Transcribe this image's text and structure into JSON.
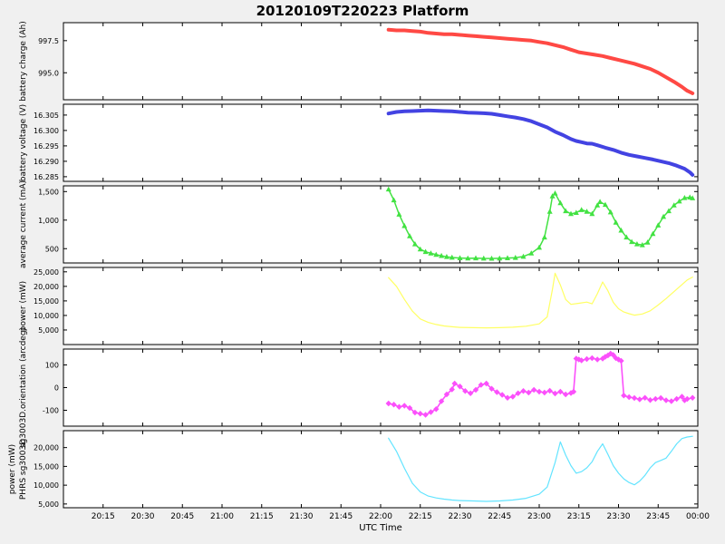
{
  "title": "20120109T220223 Platform",
  "x_axis": {
    "label": "UTC Time",
    "ticks": [
      {
        "m": 15,
        "label": "20:15"
      },
      {
        "m": 30,
        "label": "20:30"
      },
      {
        "m": 45,
        "label": "20:45"
      },
      {
        "m": 60,
        "label": "21:00"
      },
      {
        "m": 75,
        "label": "21:15"
      },
      {
        "m": 90,
        "label": "21:30"
      },
      {
        "m": 105,
        "label": "21:45"
      },
      {
        "m": 120,
        "label": "22:00"
      },
      {
        "m": 135,
        "label": "22:15"
      },
      {
        "m": 150,
        "label": "22:30"
      },
      {
        "m": 165,
        "label": "22:45"
      },
      {
        "m": 180,
        "label": "23:00"
      },
      {
        "m": 195,
        "label": "23:15"
      },
      {
        "m": 210,
        "label": "23:30"
      },
      {
        "m": 225,
        "label": "23:45"
      },
      {
        "m": 240,
        "label": "00:00"
      }
    ]
  },
  "x_domain": [
    0,
    240
  ],
  "chart_data": [
    {
      "name": "battery-charge",
      "type": "line",
      "ylabel_lines": [
        "battery charge (Ah)"
      ],
      "color": "#ff4944",
      "marker": "none",
      "line_width": 4,
      "ylim": [
        992.9,
        998.9
      ],
      "yticks": [
        {
          "v": 995.0,
          "label": "995.0"
        },
        {
          "v": 997.5,
          "label": "997.5"
        }
      ],
      "x": [
        123,
        126,
        129,
        132,
        135,
        138,
        141,
        144,
        147,
        150,
        153,
        156,
        159,
        162,
        165,
        168,
        171,
        174,
        177,
        180,
        183,
        186,
        189,
        192,
        195,
        198,
        201,
        204,
        207,
        210,
        213,
        216,
        219,
        222,
        225,
        228,
        231,
        234,
        236,
        238
      ],
      "y": [
        998.35,
        998.3,
        998.3,
        998.25,
        998.2,
        998.1,
        998.05,
        998.0,
        998.0,
        997.95,
        997.9,
        997.85,
        997.8,
        997.75,
        997.7,
        997.65,
        997.6,
        997.55,
        997.5,
        997.4,
        997.3,
        997.15,
        997.0,
        996.8,
        996.6,
        996.5,
        996.4,
        996.3,
        996.15,
        996.0,
        995.85,
        995.7,
        995.5,
        995.3,
        995.0,
        994.65,
        994.3,
        993.9,
        993.6,
        993.4
      ]
    },
    {
      "name": "battery-voltage",
      "type": "line",
      "ylabel_lines": [
        "battery voltage (V)"
      ],
      "color": "#4343e2",
      "marker": "none",
      "line_width": 4,
      "ylim": [
        16.2835,
        16.3085
      ],
      "yticks": [
        {
          "v": 16.285,
          "label": "16.285"
        },
        {
          "v": 16.29,
          "label": "16.290"
        },
        {
          "v": 16.295,
          "label": "16.295"
        },
        {
          "v": 16.3,
          "label": "16.300"
        },
        {
          "v": 16.305,
          "label": "16.305"
        }
      ],
      "x": [
        123,
        126,
        129,
        132,
        135,
        138,
        141,
        144,
        147,
        150,
        153,
        156,
        159,
        162,
        165,
        168,
        171,
        174,
        177,
        180,
        183,
        186,
        189,
        192,
        194,
        196,
        198,
        200,
        202,
        205,
        208,
        211,
        214,
        217,
        220,
        223,
        226,
        229,
        232,
        235,
        237,
        238
      ],
      "y": [
        16.3055,
        16.306,
        16.3062,
        16.3063,
        16.3064,
        16.3065,
        16.3064,
        16.3063,
        16.3062,
        16.306,
        16.3058,
        16.3057,
        16.3056,
        16.3054,
        16.305,
        16.3046,
        16.3042,
        16.3037,
        16.303,
        16.302,
        16.301,
        16.2996,
        16.2985,
        16.2972,
        16.2966,
        16.2962,
        16.2958,
        16.2957,
        16.2952,
        16.2944,
        16.2937,
        16.2928,
        16.2921,
        16.2916,
        16.2911,
        16.2906,
        16.29,
        16.2894,
        16.2886,
        16.2876,
        16.2864,
        16.2856
      ]
    },
    {
      "name": "average-current",
      "type": "line",
      "ylabel_lines": [
        "average current (mA)"
      ],
      "color": "#42e242",
      "marker": "triangle",
      "line_width": 1.5,
      "ylim": [
        250,
        1600
      ],
      "yticks": [
        {
          "v": 500,
          "label": "500"
        },
        {
          "v": 1000,
          "label": "1,000"
        },
        {
          "v": 1500,
          "label": "1,500"
        }
      ],
      "x": [
        123,
        125,
        127,
        129,
        131,
        133,
        135,
        137,
        139,
        141,
        143,
        145,
        147,
        150,
        153,
        156,
        159,
        162,
        165,
        168,
        171,
        174,
        177,
        180,
        182,
        184,
        185,
        186,
        188,
        190,
        192,
        194,
        196,
        198,
        200,
        202,
        203,
        205,
        207,
        209,
        211,
        213,
        215,
        217,
        219,
        221,
        223,
        225,
        227,
        229,
        231,
        233,
        235,
        237,
        238
      ],
      "y": [
        1540,
        1350,
        1100,
        900,
        720,
        580,
        490,
        445,
        420,
        395,
        375,
        358,
        346,
        336,
        331,
        334,
        330,
        328,
        331,
        336,
        342,
        362,
        420,
        520,
        700,
        1150,
        1420,
        1470,
        1300,
        1160,
        1110,
        1130,
        1180,
        1150,
        1110,
        1260,
        1320,
        1270,
        1140,
        960,
        820,
        700,
        620,
        580,
        565,
        610,
        760,
        910,
        1060,
        1160,
        1260,
        1330,
        1390,
        1400,
        1385
      ]
    },
    {
      "name": "power",
      "type": "line",
      "ylabel_lines": [
        "power (mW)"
      ],
      "color": "#ffff63",
      "marker": "none",
      "line_width": 1.2,
      "ylim": [
        0,
        26500
      ],
      "yticks": [
        {
          "v": 5000,
          "label": "5,000"
        },
        {
          "v": 10000,
          "label": "10,000"
        },
        {
          "v": 15000,
          "label": "15,000"
        },
        {
          "v": 20000,
          "label": "20,000"
        },
        {
          "v": 25000,
          "label": "25,000"
        }
      ],
      "x": [
        123,
        126,
        129,
        132,
        135,
        138,
        141,
        144,
        147,
        150,
        155,
        160,
        165,
        170,
        175,
        180,
        183,
        185,
        186,
        188,
        190,
        192,
        195,
        198,
        200,
        202,
        204,
        206,
        208,
        210,
        212,
        214,
        216,
        219,
        222,
        225,
        228,
        231,
        234,
        236,
        238
      ],
      "y": [
        23000,
        20000,
        15500,
        11500,
        8800,
        7600,
        6900,
        6400,
        6100,
        5900,
        5800,
        5750,
        5800,
        5950,
        6300,
        7100,
        9500,
        19000,
        24500,
        20500,
        15500,
        13800,
        14200,
        14600,
        14000,
        17500,
        21500,
        18500,
        14500,
        12300,
        11200,
        10600,
        10100,
        10500,
        11600,
        13600,
        15800,
        18200,
        20600,
        22200,
        23200
      ]
    },
    {
      "name": "orientation",
      "type": "line",
      "ylabel_lines": [
        "sg3003D.orientation (arcdeg)"
      ],
      "color": "#fb50fb",
      "marker": "diamond",
      "line_width": 1.6,
      "ylim": [
        -170,
        170
      ],
      "yticks": [
        {
          "v": -100,
          "label": "-100"
        },
        {
          "v": 0,
          "label": "0"
        },
        {
          "v": 100,
          "label": "100"
        }
      ],
      "x": [
        123,
        125,
        127,
        129,
        131,
        133,
        135,
        137,
        139,
        141,
        143,
        145,
        147,
        148,
        150,
        152,
        154,
        156,
        158,
        160,
        162,
        164,
        166,
        168,
        170,
        172,
        174,
        176,
        178,
        180,
        182,
        184,
        186,
        188,
        190,
        192,
        193,
        194,
        195,
        196,
        198,
        200,
        202,
        204,
        205,
        206,
        207,
        208,
        209,
        210,
        211,
        212,
        214,
        216,
        218,
        220,
        222,
        224,
        226,
        228,
        230,
        232,
        234,
        235,
        236,
        238
      ],
      "y": [
        -70,
        -75,
        -85,
        -80,
        -90,
        -110,
        -115,
        -120,
        -108,
        -95,
        -60,
        -30,
        -8,
        18,
        5,
        -15,
        -25,
        -10,
        12,
        18,
        -5,
        -20,
        -32,
        -45,
        -40,
        -25,
        -15,
        -22,
        -10,
        -18,
        -22,
        -14,
        -26,
        -18,
        -30,
        -24,
        -18,
        128,
        124,
        120,
        126,
        130,
        124,
        128,
        136,
        142,
        150,
        144,
        130,
        124,
        118,
        -35,
        -42,
        -46,
        -52,
        -45,
        -55,
        -50,
        -46,
        -56,
        -60,
        -50,
        -40,
        -56,
        -50,
        -45
      ]
    },
    {
      "name": "phrs-power",
      "type": "line",
      "ylabel_lines": [
        "power (mW)",
        "PHRS sg3003D"
      ],
      "color": "#63e4ff",
      "marker": "none",
      "line_width": 1.2,
      "ylim": [
        4000,
        24500
      ],
      "yticks": [
        {
          "v": 5000,
          "label": "5,000"
        },
        {
          "v": 10000,
          "label": "10,000"
        },
        {
          "v": 15000,
          "label": "15,000"
        },
        {
          "v": 20000,
          "label": "20,000"
        }
      ],
      "x": [
        123,
        126,
        129,
        132,
        135,
        138,
        141,
        144,
        147,
        150,
        155,
        160,
        165,
        170,
        175,
        180,
        183,
        186,
        188,
        190,
        192,
        194,
        196,
        198,
        200,
        202,
        204,
        206,
        208,
        210,
        212,
        214,
        216,
        218,
        220,
        222,
        224,
        226,
        228,
        230,
        232,
        234,
        236,
        238
      ],
      "y": [
        22500,
        19000,
        14500,
        10500,
        8200,
        7100,
        6600,
        6300,
        6050,
        5900,
        5800,
        5700,
        5800,
        6050,
        6500,
        7600,
        9500,
        16000,
        21500,
        18000,
        15200,
        13200,
        13600,
        14600,
        16200,
        19000,
        21000,
        18200,
        15200,
        13200,
        11700,
        10700,
        10100,
        11100,
        12600,
        14600,
        16000,
        16600,
        17200,
        19000,
        21000,
        22400,
        22800,
        23000
      ]
    }
  ]
}
